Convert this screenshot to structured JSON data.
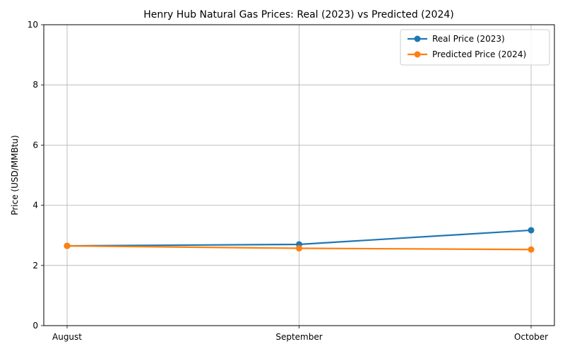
{
  "chart_data": {
    "type": "line",
    "title": "Henry Hub Natural Gas Prices: Real (2023) vs Predicted (2024)",
    "xlabel": "",
    "ylabel": "Price (USD/MMBtu)",
    "categories": [
      "August",
      "September",
      "October"
    ],
    "ylim": [
      0,
      10
    ],
    "yticks": [
      0,
      2,
      4,
      6,
      8,
      10
    ],
    "grid": true,
    "legend_position": "top-right",
    "series": [
      {
        "name": "Real Price (2023)",
        "color": "#1f77b4",
        "values": [
          2.65,
          2.7,
          3.17
        ]
      },
      {
        "name": "Predicted Price (2024)",
        "color": "#ff7f0e",
        "values": [
          2.65,
          2.57,
          2.53
        ]
      }
    ]
  }
}
